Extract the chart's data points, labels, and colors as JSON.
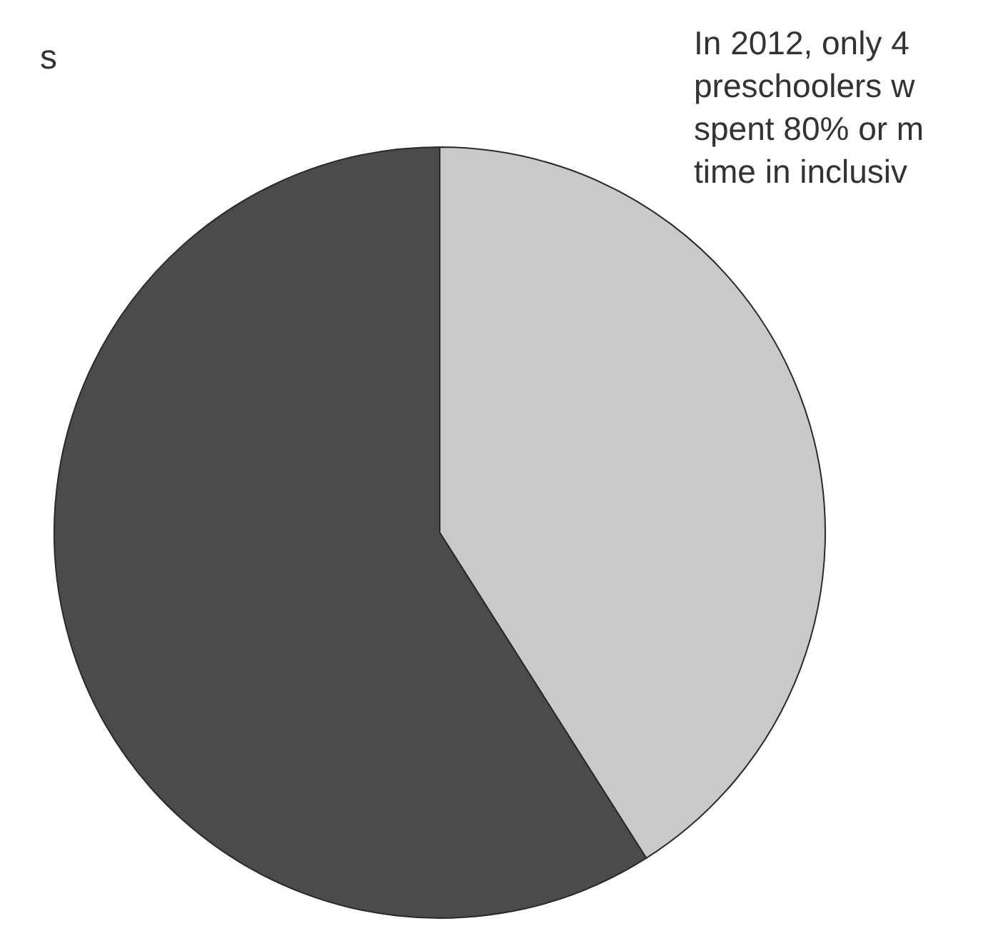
{
  "chart_data": {
    "type": "pie",
    "categories": [
      null,
      null
    ],
    "values": [
      41,
      59
    ],
    "colors": [
      "#c9c9c9",
      "#4b4b4b"
    ],
    "annotations": [
      "s",
      "In 2012, only 4",
      "preschoolers w",
      "spent 80% or m",
      "time in inclusiv"
    ]
  }
}
